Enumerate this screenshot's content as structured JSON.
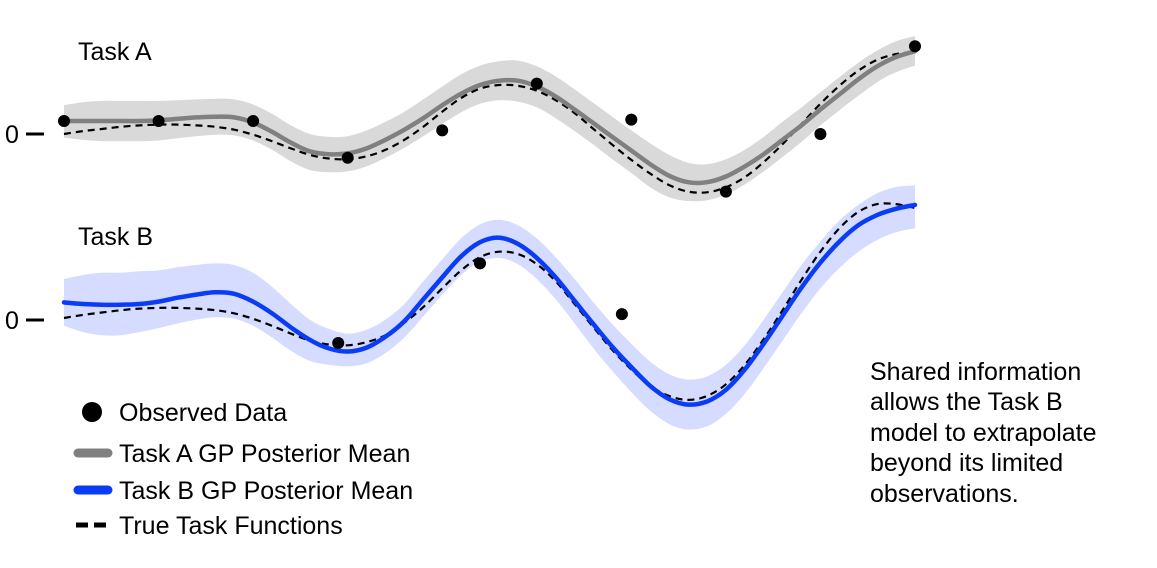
{
  "chart_data": [
    {
      "type": "line",
      "title": "Task A",
      "y_zero_label": "0",
      "x": [
        0.0,
        0.1,
        0.2,
        0.3,
        0.4,
        0.5,
        0.6,
        0.7,
        0.8,
        0.9,
        1.0,
        1.1,
        1.2,
        1.3,
        1.4,
        1.5,
        1.6,
        1.7,
        1.8,
        1.9,
        2.0,
        2.1,
        2.2,
        2.3,
        2.4,
        2.5,
        2.6,
        2.7,
        2.8,
        2.9,
        3.0,
        3.1,
        3.2,
        3.3,
        3.4,
        3.5,
        3.6,
        3.7,
        3.8,
        3.9,
        4.0,
        4.1,
        4.2,
        4.3,
        4.4,
        4.5
      ],
      "series": [
        {
          "name": "Task A GP Posterior Mean",
          "color": "#808080",
          "mean": [
            0.18,
            0.18,
            0.18,
            0.18,
            0.18,
            0.19,
            0.21,
            0.23,
            0.24,
            0.23,
            0.16,
            0.03,
            -0.12,
            -0.24,
            -0.28,
            -0.27,
            -0.2,
            -0.08,
            0.06,
            0.22,
            0.4,
            0.56,
            0.68,
            0.74,
            0.74,
            0.66,
            0.52,
            0.34,
            0.15,
            -0.04,
            -0.23,
            -0.42,
            -0.58,
            -0.67,
            -0.67,
            -0.59,
            -0.45,
            -0.28,
            -0.08,
            0.12,
            0.34,
            0.55,
            0.76,
            0.94,
            1.07,
            1.15
          ],
          "lower": [
            -0.05,
            -0.08,
            -0.1,
            -0.1,
            -0.1,
            -0.09,
            -0.06,
            -0.03,
            -0.01,
            -0.02,
            -0.09,
            -0.22,
            -0.38,
            -0.5,
            -0.53,
            -0.52,
            -0.45,
            -0.33,
            -0.19,
            -0.03,
            0.14,
            0.3,
            0.42,
            0.47,
            0.45,
            0.37,
            0.22,
            0.04,
            -0.15,
            -0.35,
            -0.54,
            -0.74,
            -0.88,
            -0.93,
            -0.92,
            -0.84,
            -0.7,
            -0.52,
            -0.32,
            -0.11,
            0.12,
            0.33,
            0.53,
            0.72,
            0.86,
            0.95
          ],
          "upper": [
            0.4,
            0.44,
            0.46,
            0.46,
            0.46,
            0.46,
            0.47,
            0.48,
            0.49,
            0.48,
            0.41,
            0.28,
            0.12,
            0.0,
            -0.04,
            -0.03,
            0.05,
            0.17,
            0.31,
            0.48,
            0.66,
            0.83,
            0.95,
            1.01,
            1.02,
            0.94,
            0.8,
            0.62,
            0.43,
            0.24,
            0.05,
            -0.13,
            -0.29,
            -0.4,
            -0.42,
            -0.35,
            -0.22,
            -0.04,
            0.17,
            0.37,
            0.58,
            0.79,
            0.99,
            1.16,
            1.29,
            1.36
          ]
        },
        {
          "name": "True Task Functions",
          "color": "#000000",
          "values": [
            0.0,
            0.04,
            0.07,
            0.1,
            0.12,
            0.13,
            0.13,
            0.12,
            0.1,
            0.06,
            -0.01,
            -0.1,
            -0.2,
            -0.29,
            -0.34,
            -0.35,
            -0.31,
            -0.22,
            -0.08,
            0.1,
            0.31,
            0.5,
            0.63,
            0.68,
            0.67,
            0.6,
            0.47,
            0.29,
            0.07,
            -0.15,
            -0.36,
            -0.55,
            -0.71,
            -0.8,
            -0.81,
            -0.74,
            -0.6,
            -0.39,
            -0.14,
            0.14,
            0.42,
            0.67,
            0.88,
            1.03,
            1.11,
            1.14
          ]
        }
      ],
      "observed": {
        "name": "Observed Data",
        "color": "#000000",
        "x": [
          0.0,
          0.5,
          1.0,
          1.5,
          2.0,
          2.5,
          3.0,
          3.5,
          4.0,
          4.5
        ],
        "y": [
          0.18,
          0.18,
          0.18,
          -0.33,
          0.05,
          0.7,
          0.2,
          -0.8,
          0.0,
          1.22
        ]
      },
      "xlim": [
        0.0,
        4.5
      ],
      "ylim": [
        -1.05,
        1.5
      ]
    },
    {
      "type": "line",
      "title": "Task B",
      "y_zero_label": "0",
      "x": [
        0.0,
        0.1,
        0.2,
        0.3,
        0.4,
        0.5,
        0.6,
        0.7,
        0.8,
        0.9,
        1.0,
        1.1,
        1.2,
        1.3,
        1.4,
        1.5,
        1.6,
        1.7,
        1.8,
        1.9,
        2.0,
        2.1,
        2.2,
        2.3,
        2.4,
        2.5,
        2.6,
        2.7,
        2.8,
        2.9,
        3.0,
        3.1,
        3.2,
        3.3,
        3.4,
        3.5,
        3.6,
        3.7,
        3.8,
        3.9,
        4.0,
        4.1,
        4.2,
        4.3,
        4.4,
        4.5
      ],
      "series": [
        {
          "name": "Task B GP Posterior Mean",
          "color": "#0a3cf5",
          "mean": [
            0.2,
            0.18,
            0.17,
            0.17,
            0.18,
            0.21,
            0.26,
            0.3,
            0.33,
            0.31,
            0.21,
            0.06,
            -0.12,
            -0.28,
            -0.39,
            -0.43,
            -0.38,
            -0.24,
            -0.04,
            0.24,
            0.52,
            0.79,
            0.97,
            1.03,
            0.95,
            0.77,
            0.52,
            0.22,
            -0.08,
            -0.37,
            -0.63,
            -0.87,
            -1.04,
            -1.11,
            -1.07,
            -0.92,
            -0.66,
            -0.33,
            0.03,
            0.39,
            0.71,
            0.98,
            1.19,
            1.32,
            1.4,
            1.45
          ],
          "lower": [
            -0.1,
            -0.18,
            -0.22,
            -0.22,
            -0.18,
            -0.13,
            -0.07,
            -0.02,
            0.01,
            -0.01,
            -0.1,
            -0.25,
            -0.42,
            -0.55,
            -0.6,
            -0.62,
            -0.58,
            -0.45,
            -0.25,
            0.02,
            0.3,
            0.55,
            0.72,
            0.77,
            0.69,
            0.5,
            0.24,
            -0.07,
            -0.39,
            -0.68,
            -0.95,
            -1.19,
            -1.36,
            -1.43,
            -1.39,
            -1.23,
            -0.97,
            -0.64,
            -0.29,
            0.06,
            0.38,
            0.64,
            0.85,
            1.0,
            1.1,
            1.15
          ],
          "upper": [
            0.5,
            0.55,
            0.58,
            0.58,
            0.6,
            0.61,
            0.65,
            0.68,
            0.7,
            0.68,
            0.58,
            0.4,
            0.18,
            -0.02,
            -0.14,
            -0.2,
            -0.15,
            -0.02,
            0.18,
            0.47,
            0.75,
            1.02,
            1.2,
            1.26,
            1.19,
            1.02,
            0.78,
            0.5,
            0.2,
            -0.08,
            -0.33,
            -0.56,
            -0.72,
            -0.79,
            -0.75,
            -0.6,
            -0.35,
            -0.02,
            0.33,
            0.68,
            0.98,
            1.25,
            1.45,
            1.6,
            1.68,
            1.7
          ]
        },
        {
          "name": "True Task Functions",
          "color": "#000000",
          "values": [
            0.0,
            0.04,
            0.07,
            0.1,
            0.12,
            0.13,
            0.13,
            0.12,
            0.1,
            0.06,
            -0.01,
            -0.1,
            -0.2,
            -0.29,
            -0.34,
            -0.35,
            -0.31,
            -0.22,
            -0.06,
            0.14,
            0.38,
            0.61,
            0.78,
            0.85,
            0.82,
            0.69,
            0.47,
            0.18,
            -0.12,
            -0.41,
            -0.66,
            -0.87,
            -1.0,
            -1.05,
            -1.0,
            -0.85,
            -0.6,
            -0.27,
            0.1,
            0.49,
            0.85,
            1.15,
            1.36,
            1.46,
            1.46,
            1.41
          ]
        }
      ],
      "observed": {
        "name": "Observed Data",
        "color": "#000000",
        "x": [
          1.45,
          2.2,
          2.95
        ],
        "y": [
          -0.32,
          0.7,
          0.05
        ]
      },
      "xlim": [
        0.0,
        4.5
      ],
      "ylim": [
        -1.55,
        1.95
      ]
    }
  ],
  "legend": {
    "items": [
      {
        "label": "Observed Data",
        "marker": "dot",
        "color": "#000000"
      },
      {
        "label": "Task A GP Posterior Mean",
        "marker": "thick-line",
        "color": "#808080"
      },
      {
        "label": "Task B GP Posterior Mean",
        "marker": "thick-line",
        "color": "#0a3cf5"
      },
      {
        "label": "True Task Functions",
        "marker": "dashed-line",
        "color": "#000000"
      }
    ]
  },
  "annotation": {
    "lines": [
      "Shared information",
      "allows the Task B",
      "model to extrapolate",
      "beyond its limited",
      "observations."
    ]
  },
  "colors": {
    "band_a": "#d9d9d9",
    "band_b": "#d6dcff"
  }
}
